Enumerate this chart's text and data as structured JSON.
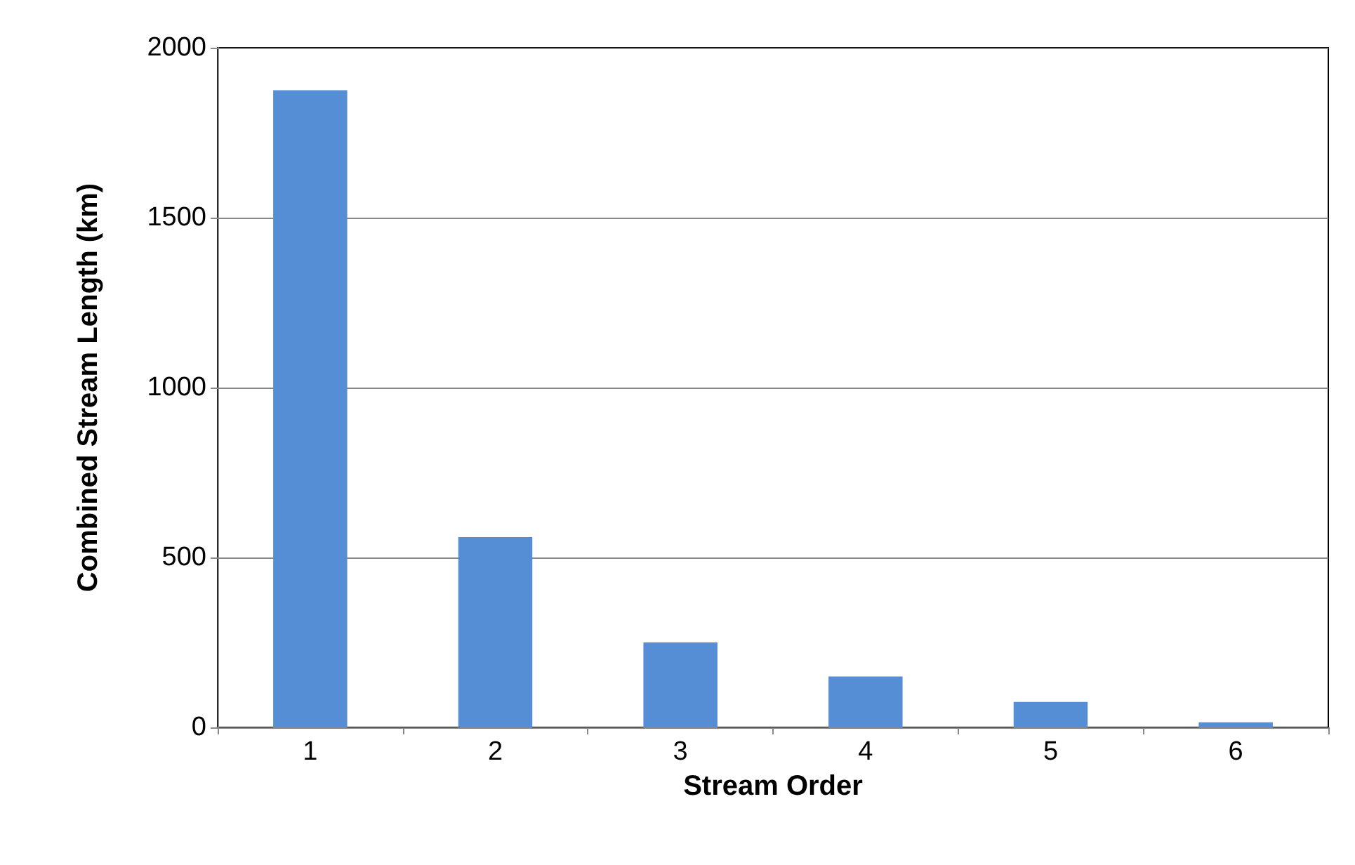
{
  "chart_data": {
    "type": "bar",
    "xlabel": "Stream Order",
    "ylabel": "Combined Stream Length (km)",
    "categories": [
      "1",
      "2",
      "3",
      "4",
      "5",
      "6"
    ],
    "values": [
      1875,
      560,
      250,
      150,
      75,
      15
    ],
    "color": "#558ed5",
    "ylim": [
      0,
      2000
    ],
    "yticks": [
      0,
      500,
      1000,
      1500,
      2000
    ],
    "grid": "y"
  }
}
